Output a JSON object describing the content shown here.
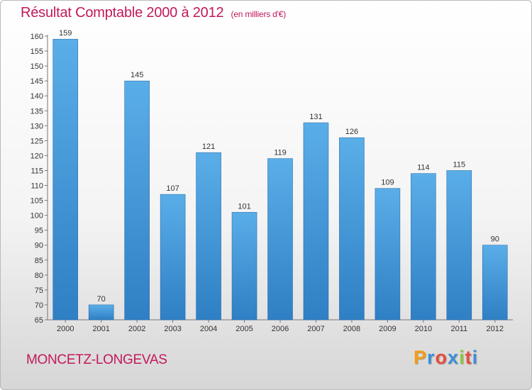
{
  "chart_data": {
    "type": "bar",
    "title": "Résultat Comptable 2000 à 2012",
    "subtitle": "(en milliers d'€)",
    "categories": [
      "2000",
      "2001",
      "2002",
      "2003",
      "2004",
      "2005",
      "2006",
      "2007",
      "2008",
      "2009",
      "2010",
      "2011",
      "2012"
    ],
    "values": [
      159,
      70,
      145,
      107,
      121,
      101,
      119,
      131,
      126,
      109,
      114,
      115,
      90
    ],
    "ylim": [
      65,
      160
    ],
    "yticks": [
      65,
      70,
      75,
      80,
      85,
      90,
      95,
      100,
      105,
      110,
      115,
      120,
      125,
      130,
      135,
      140,
      145,
      150,
      155,
      160
    ],
    "xlabel": "",
    "ylabel": "",
    "grid": false,
    "bar_color_top": "#5aaee8",
    "bar_color_bottom": "#2f7fc4"
  },
  "commune": "MONCETZ-LONGEVAS",
  "brand": {
    "letters": [
      "P",
      "r",
      "o",
      "x",
      "i",
      "t",
      "i"
    ],
    "colors": [
      "#f39c12",
      "#3b8fd6",
      "#e74c3c",
      "#3b8fd6",
      "#8dc63f",
      "#e74c3c",
      "#3b8fd6"
    ]
  },
  "accent_color": "#c2185b"
}
